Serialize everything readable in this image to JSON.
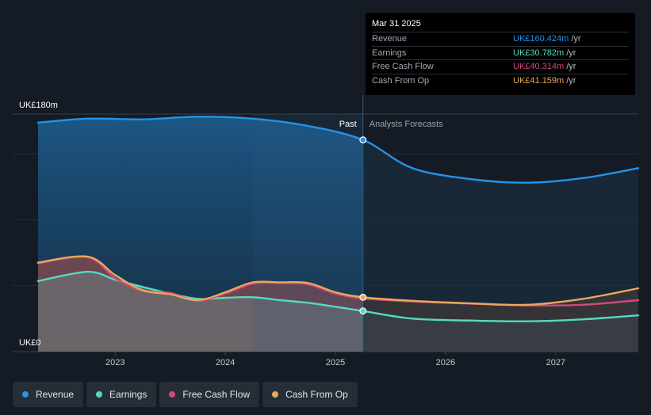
{
  "tooltip": {
    "date": "Mar 31 2025",
    "rows": [
      {
        "label": "Revenue",
        "value": "UK£160.424m",
        "unit": "/yr",
        "color": "#2394e8"
      },
      {
        "label": "Earnings",
        "value": "UK£30.782m",
        "unit": "/yr",
        "color": "#57d9c1"
      },
      {
        "label": "Free Cash Flow",
        "value": "UK£40.314m",
        "unit": "/yr",
        "color": "#d1487a"
      },
      {
        "label": "Cash From Op",
        "value": "UK£41.159m",
        "unit": "/yr",
        "color": "#e8a95a"
      }
    ]
  },
  "chart_data": {
    "type": "area",
    "title": "",
    "xlabel": "",
    "ylabel": "",
    "ylim": [
      0,
      180
    ],
    "y_tick_labels": [
      "UK£0",
      "UK£180m"
    ],
    "x_ticks": [
      2023,
      2024,
      2025,
      2026,
      2027
    ],
    "x_range": [
      2022.3,
      2027.75
    ],
    "past_label": "Past",
    "forecast_label": "Analysts Forecasts",
    "divider_x": 2025.25,
    "highlight_start": 2024.25,
    "series": [
      {
        "name": "Revenue",
        "color": "#2394e8",
        "x": [
          2022.3,
          2022.75,
          2023.25,
          2023.75,
          2024.25,
          2024.75,
          2025.25,
          2025.7,
          2026.25,
          2026.75,
          2027.25,
          2027.75
        ],
        "values": [
          173.5,
          176.5,
          176,
          178,
          176.5,
          171,
          160.4,
          139,
          130.5,
          128,
          131.5,
          139
        ]
      },
      {
        "name": "Earnings",
        "color": "#57d9c1",
        "x": [
          2022.3,
          2022.75,
          2023.0,
          2023.25,
          2023.5,
          2023.75,
          2024.0,
          2024.25,
          2024.5,
          2024.75,
          2025.0,
          2025.25,
          2025.7,
          2026.25,
          2026.75,
          2027.25,
          2027.75
        ],
        "values": [
          53.5,
          60.5,
          54.5,
          49,
          44,
          40,
          40.8,
          41.2,
          39,
          37,
          34,
          30.8,
          25,
          23.5,
          23,
          24.5,
          27.5
        ]
      },
      {
        "name": "Free Cash Flow",
        "color": "#d1487a",
        "x": [
          2022.3,
          2022.75,
          2023.0,
          2023.25,
          2023.5,
          2023.75,
          2024.0,
          2024.25,
          2024.5,
          2024.75,
          2025.0,
          2025.25,
          2025.7,
          2026.25,
          2026.75,
          2027.25,
          2027.75
        ],
        "values": [
          67,
          71.5,
          55.5,
          46,
          44.5,
          38.5,
          44,
          51.5,
          52,
          51,
          44,
          40.3,
          38,
          36.3,
          35,
          35.5,
          39
        ]
      },
      {
        "name": "Cash From Op",
        "color": "#e8a95a",
        "x": [
          2022.3,
          2022.75,
          2023.0,
          2023.25,
          2023.5,
          2023.75,
          2024.0,
          2024.25,
          2024.5,
          2024.75,
          2025.0,
          2025.25,
          2025.7,
          2026.25,
          2026.75,
          2027.25,
          2027.75
        ],
        "values": [
          67.5,
          72,
          58,
          46.5,
          43.5,
          39,
          45,
          52.5,
          52.5,
          52,
          45,
          41.2,
          38.5,
          36.5,
          35.5,
          40,
          48
        ]
      }
    ]
  },
  "legend": [
    {
      "label": "Revenue",
      "color": "#2394e8"
    },
    {
      "label": "Earnings",
      "color": "#57d9c1"
    },
    {
      "label": "Free Cash Flow",
      "color": "#d1487a"
    },
    {
      "label": "Cash From Op",
      "color": "#e8a95a"
    }
  ]
}
